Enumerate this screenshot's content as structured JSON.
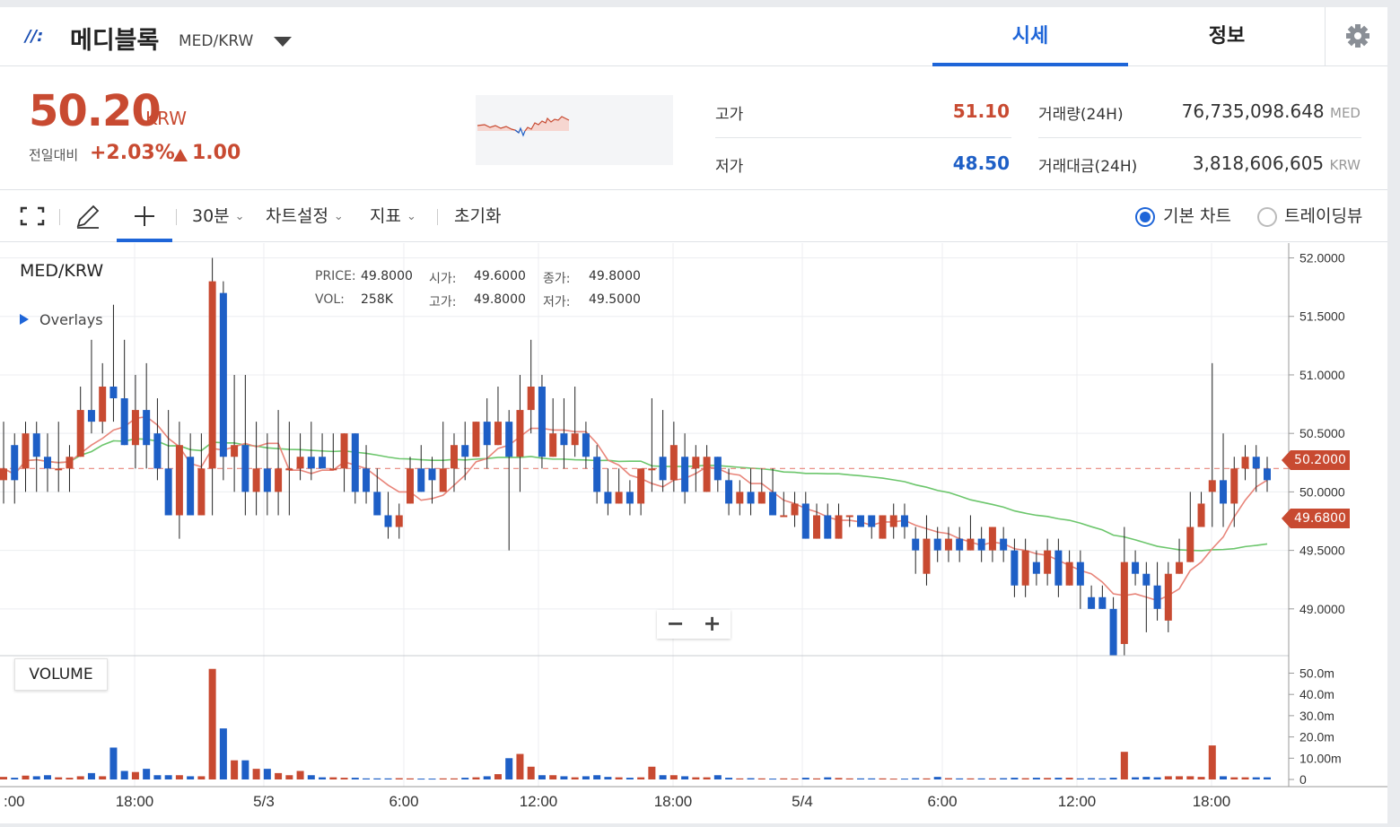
{
  "header": {
    "logo": "//:",
    "coin_name": "메디블록",
    "coin_pair": "MED/KRW",
    "tabs": [
      {
        "label": "시세",
        "active": true
      },
      {
        "label": "정보",
        "active": false
      }
    ]
  },
  "price": {
    "current": "50.20",
    "unit": "KRW",
    "change_label": "전일대비",
    "change_pct": "+2.03%",
    "change_abs": "1.00",
    "high_label": "고가",
    "high_value": "51.10",
    "low_label": "저가",
    "low_value": "48.50",
    "volume_label": "거래량(24H)",
    "volume_value": "76,735,098.648",
    "volume_unit": "MED",
    "amount_label": "거래대금(24H)",
    "amount_value": "3,818,606,605",
    "amount_unit": "KRW"
  },
  "toolbar": {
    "interval": "30분",
    "chart_settings": "차트설정",
    "indicators": "지표",
    "reset": "초기화",
    "basic_chart": "기본 차트",
    "tradingview": "트레이딩뷰"
  },
  "chart": {
    "pair": "MED/KRW",
    "overlays": "Overlays",
    "ohlc": {
      "price_label": "PRICE:",
      "price": "49.8000",
      "vol_label": "VOL:",
      "vol": "258K",
      "open_label": "시가:",
      "open": "49.6000",
      "high_label": "고가:",
      "high": "49.8000",
      "close_label": "종가:",
      "close": "49.8000",
      "low_label": "저가:",
      "low": "49.5000"
    },
    "volume_label": "VOLUME",
    "last_price_tag": "50.2000",
    "ma_tag": "49.6800",
    "colors": {
      "up": "#c84a31",
      "down": "#1e5fc6",
      "ma_short": "#e8857a",
      "ma_long": "#6cc66c"
    }
  },
  "chart_data": {
    "type": "candlestick",
    "y_ticks": [
      "52.0000",
      "51.5000",
      "51.0000",
      "50.5000",
      "50.0000",
      "49.5000",
      "49.0000"
    ],
    "ylim": [
      48.6,
      52.05
    ],
    "volume_ticks": [
      "50.0m",
      "40.0m",
      "30.0m",
      "20.0m",
      "10.00m",
      "0"
    ],
    "volume_ylim": [
      0,
      54
    ],
    "x_ticks": [
      ":00",
      "18:00",
      "5/3",
      "6:00",
      "12:00",
      "18:00",
      "5/4",
      "6:00",
      "12:00",
      "18:00"
    ],
    "candles": [
      [
        50.1,
        50.2,
        50.6,
        49.9,
        1.2
      ],
      [
        50.4,
        50.1,
        50.5,
        49.9,
        0.8
      ],
      [
        50.2,
        50.5,
        50.6,
        50.0,
        1.8
      ],
      [
        50.5,
        50.3,
        50.6,
        50.0,
        1.5
      ],
      [
        50.3,
        50.2,
        50.5,
        50.0,
        2.0
      ],
      [
        50.2,
        50.2,
        50.6,
        50.0,
        1.0
      ],
      [
        50.2,
        50.3,
        50.4,
        50.0,
        0.8
      ],
      [
        50.3,
        50.7,
        50.9,
        50.3,
        1.5
      ],
      [
        50.7,
        50.6,
        51.3,
        50.5,
        3.0
      ],
      [
        50.6,
        50.9,
        51.1,
        50.5,
        1.5
      ],
      [
        50.9,
        50.8,
        51.6,
        50.6,
        15.0
      ],
      [
        50.8,
        50.4,
        51.3,
        50.4,
        4.0
      ],
      [
        50.4,
        50.7,
        51.0,
        50.2,
        3.5
      ],
      [
        50.7,
        50.4,
        51.1,
        50.2,
        5.0
      ],
      [
        50.5,
        50.2,
        50.8,
        50.1,
        2.0
      ],
      [
        50.2,
        49.8,
        50.7,
        49.8,
        2.0
      ],
      [
        49.8,
        50.4,
        50.6,
        49.6,
        2.0
      ],
      [
        50.3,
        49.8,
        50.5,
        49.8,
        1.5
      ],
      [
        49.8,
        50.2,
        50.5,
        49.8,
        1.5
      ],
      [
        50.2,
        51.8,
        52.0,
        49.8,
        52.0
      ],
      [
        51.7,
        50.3,
        51.8,
        50.1,
        24.0
      ],
      [
        50.3,
        50.4,
        51.0,
        50.0,
        9.0
      ],
      [
        50.4,
        50.0,
        51.0,
        49.8,
        9.0
      ],
      [
        50.0,
        50.2,
        50.6,
        49.8,
        5.0
      ],
      [
        50.2,
        50.0,
        50.5,
        49.8,
        5.0
      ],
      [
        50.0,
        50.2,
        50.7,
        49.8,
        3.0
      ],
      [
        50.2,
        50.2,
        50.6,
        49.8,
        2.0
      ],
      [
        50.2,
        50.3,
        50.5,
        50.1,
        4.0
      ],
      [
        50.3,
        50.2,
        50.6,
        50.1,
        2.0
      ],
      [
        50.3,
        50.2,
        50.5,
        50.2,
        1.0
      ],
      [
        50.2,
        50.2,
        50.5,
        50.2,
        1.0
      ],
      [
        50.2,
        50.5,
        50.5,
        50.0,
        0.8
      ],
      [
        50.5,
        50.0,
        50.5,
        49.9,
        0.8
      ],
      [
        50.2,
        50.0,
        50.4,
        49.9,
        0.5
      ],
      [
        50.0,
        49.8,
        50.2,
        49.8,
        0.5
      ],
      [
        49.8,
        49.7,
        50.0,
        49.6,
        0.5
      ],
      [
        49.7,
        49.8,
        49.9,
        49.6,
        0.6
      ],
      [
        49.9,
        50.2,
        50.3,
        49.9,
        0.5
      ],
      [
        50.2,
        50.0,
        50.4,
        50.0,
        0.4
      ],
      [
        50.2,
        50.1,
        50.3,
        49.9,
        0.4
      ],
      [
        50.0,
        50.2,
        50.6,
        50.0,
        0.5
      ],
      [
        50.2,
        50.4,
        50.5,
        50.0,
        0.5
      ],
      [
        50.4,
        50.3,
        50.6,
        50.1,
        0.8
      ],
      [
        50.3,
        50.6,
        50.6,
        50.3,
        1.0
      ],
      [
        50.6,
        50.4,
        50.8,
        50.2,
        1.5
      ],
      [
        50.4,
        50.6,
        50.9,
        50.4,
        2.5
      ],
      [
        50.6,
        50.3,
        50.7,
        49.5,
        10.0
      ],
      [
        50.3,
        50.7,
        51.0,
        50.0,
        12.0
      ],
      [
        50.7,
        50.9,
        51.3,
        50.5,
        6.0
      ],
      [
        50.9,
        50.3,
        51.0,
        50.2,
        2.0
      ],
      [
        50.3,
        50.5,
        50.8,
        50.3,
        2.0
      ],
      [
        50.5,
        50.4,
        50.8,
        50.2,
        1.5
      ],
      [
        50.4,
        50.5,
        50.9,
        50.3,
        1.0
      ],
      [
        50.5,
        50.3,
        50.6,
        50.2,
        1.5
      ],
      [
        50.3,
        50.0,
        50.4,
        49.9,
        2.0
      ],
      [
        50.0,
        49.9,
        50.2,
        49.8,
        1.2
      ],
      [
        49.9,
        50.0,
        50.2,
        49.9,
        1.0
      ],
      [
        50.0,
        49.9,
        50.1,
        49.8,
        0.8
      ],
      [
        49.9,
        50.2,
        50.2,
        49.8,
        1.0
      ],
      [
        50.2,
        50.2,
        50.8,
        50.0,
        6.0
      ],
      [
        50.3,
        50.1,
        50.7,
        50.0,
        2.0
      ],
      [
        50.1,
        50.4,
        50.6,
        50.0,
        2.0
      ],
      [
        50.3,
        50.0,
        50.5,
        49.9,
        1.5
      ],
      [
        50.2,
        50.3,
        50.4,
        50.0,
        1.0
      ],
      [
        50.0,
        50.3,
        50.4,
        50.0,
        1.0
      ],
      [
        50.3,
        50.1,
        50.3,
        50.0,
        2.0
      ],
      [
        50.1,
        49.9,
        50.2,
        49.8,
        0.8
      ],
      [
        49.9,
        50.0,
        50.1,
        49.8,
        0.5
      ],
      [
        50.0,
        49.9,
        50.2,
        49.8,
        0.6
      ],
      [
        49.9,
        50.0,
        50.2,
        49.9,
        0.5
      ],
      [
        50.0,
        49.8,
        50.2,
        49.8,
        0.4
      ],
      [
        49.8,
        49.8,
        50.0,
        49.8,
        0.5
      ],
      [
        49.8,
        49.9,
        50.0,
        49.7,
        0.4
      ],
      [
        49.9,
        49.6,
        50.0,
        49.6,
        0.8
      ],
      [
        49.6,
        49.8,
        49.9,
        49.6,
        0.5
      ],
      [
        49.8,
        49.6,
        49.9,
        49.6,
        1.0
      ],
      [
        49.6,
        49.8,
        49.9,
        49.6,
        0.7
      ],
      [
        49.8,
        49.8,
        49.8,
        49.7,
        0.5
      ],
      [
        49.8,
        49.7,
        49.8,
        49.7,
        0.5
      ],
      [
        49.8,
        49.7,
        49.8,
        49.6,
        0.5
      ],
      [
        49.6,
        49.8,
        49.8,
        49.6,
        0.5
      ],
      [
        49.7,
        49.8,
        49.9,
        49.6,
        0.4
      ],
      [
        49.8,
        49.7,
        49.9,
        49.6,
        0.4
      ],
      [
        49.6,
        49.5,
        49.7,
        49.3,
        0.6
      ],
      [
        49.3,
        49.6,
        49.8,
        49.2,
        0.5
      ],
      [
        49.6,
        49.5,
        49.7,
        49.4,
        1.2
      ],
      [
        49.5,
        49.6,
        49.7,
        49.4,
        0.6
      ],
      [
        49.6,
        49.5,
        49.7,
        49.4,
        0.5
      ],
      [
        49.5,
        49.6,
        49.8,
        49.5,
        0.5
      ],
      [
        49.6,
        49.5,
        49.7,
        49.4,
        0.5
      ],
      [
        49.5,
        49.7,
        49.7,
        49.4,
        0.5
      ],
      [
        49.6,
        49.5,
        49.7,
        49.4,
        0.6
      ],
      [
        49.5,
        49.2,
        49.6,
        49.1,
        0.8
      ],
      [
        49.2,
        49.5,
        49.6,
        49.1,
        0.6
      ],
      [
        49.4,
        49.3,
        49.5,
        49.2,
        0.8
      ],
      [
        49.3,
        49.5,
        49.6,
        49.2,
        0.7
      ],
      [
        49.5,
        49.2,
        49.6,
        49.1,
        0.8
      ],
      [
        49.2,
        49.4,
        49.5,
        49.2,
        0.8
      ],
      [
        49.4,
        49.2,
        49.5,
        49.0,
        0.5
      ],
      [
        49.1,
        49.0,
        49.2,
        49.0,
        0.6
      ],
      [
        49.1,
        49.0,
        49.2,
        49.0,
        0.5
      ],
      [
        49.0,
        48.6,
        49.1,
        48.6,
        0.8
      ],
      [
        48.7,
        49.4,
        49.7,
        48.6,
        13.0
      ],
      [
        49.4,
        49.3,
        49.5,
        49.2,
        1.0
      ],
      [
        49.3,
        49.2,
        49.4,
        48.8,
        1.2
      ],
      [
        49.2,
        49.0,
        49.4,
        48.9,
        1.0
      ],
      [
        48.9,
        49.3,
        49.4,
        48.8,
        1.5
      ],
      [
        49.3,
        49.4,
        49.6,
        49.3,
        1.5
      ],
      [
        49.4,
        49.7,
        50.0,
        49.4,
        1.5
      ],
      [
        49.7,
        49.9,
        50.0,
        49.9,
        1.2
      ],
      [
        50.0,
        50.1,
        51.1,
        49.7,
        16.0
      ],
      [
        50.1,
        49.9,
        50.5,
        49.7,
        1.5
      ],
      [
        49.9,
        50.2,
        50.3,
        49.7,
        1.0
      ],
      [
        50.2,
        50.3,
        50.4,
        50.1,
        1.0
      ],
      [
        50.3,
        50.2,
        50.4,
        50.0,
        1.0
      ],
      [
        50.2,
        50.1,
        50.3,
        50.0,
        1.0
      ]
    ]
  }
}
